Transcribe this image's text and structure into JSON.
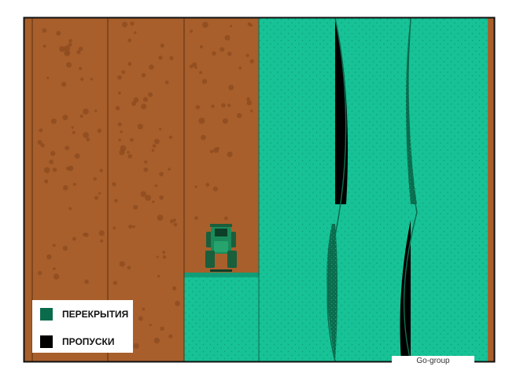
{
  "legend": {
    "items": [
      {
        "label": "ПЕРЕКРЫТИЯ",
        "color": "#0a6b4c",
        "meaning": "overlap"
      },
      {
        "label": "ПРОПУСКИ",
        "color": "#000000",
        "meaning": "gap"
      }
    ]
  },
  "watermark": {
    "text": "Go-group"
  },
  "colors": {
    "soil": "#a85f2b",
    "soil_dots": "#8c4a1f",
    "sown": "#17c296",
    "sown_dots": "#0f9e79",
    "overlap": "#0a6b4c",
    "gap": "#000000",
    "frame": "#111111",
    "tractor": "#1a8a5a"
  },
  "icons": {
    "tractor": "tractor-icon"
  }
}
